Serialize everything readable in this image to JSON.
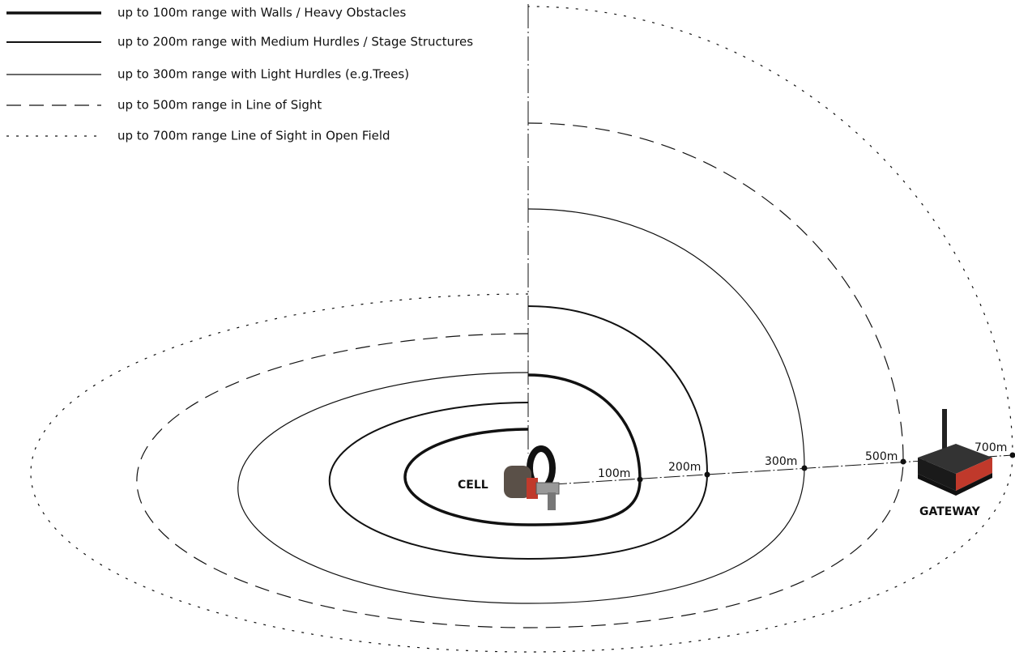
{
  "legend": [
    {
      "label": "up to 100m range with Walls / Heavy Obstacles"
    },
    {
      "label": "up to 200m range with Medium Hurdles / Stage Structures"
    },
    {
      "label": "up to 300m range with Light Hurdles (e.g.Trees)"
    },
    {
      "label": "up to 500m range in Line of Sight"
    },
    {
      "label": "up to 700m range Line of Sight in Open Field"
    }
  ],
  "range_labels": [
    "100m",
    "200m",
    "300m",
    "500m",
    "700m"
  ],
  "cell_label": "CELL",
  "gateway_label": "GATEWAY"
}
